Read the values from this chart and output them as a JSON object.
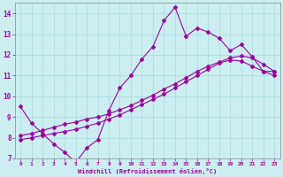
{
  "xlabel": "Windchill (Refroidissement éolien,°C)",
  "xlim": [
    -0.5,
    23.5
  ],
  "ylim": [
    7,
    14.5
  ],
  "xticks": [
    0,
    1,
    2,
    3,
    4,
    5,
    6,
    7,
    8,
    9,
    10,
    11,
    12,
    13,
    14,
    15,
    16,
    17,
    18,
    19,
    20,
    21,
    22,
    23
  ],
  "yticks": [
    7,
    8,
    9,
    10,
    11,
    12,
    13,
    14
  ],
  "bg_color": "#cceef0",
  "line_color": "#990099",
  "grid_color": "#aadddd",
  "line1_x": [
    0,
    1,
    2,
    3,
    4,
    5,
    6,
    7,
    8,
    9,
    10,
    11,
    12,
    13,
    14,
    15,
    16,
    17,
    18,
    19,
    20,
    21,
    22,
    23
  ],
  "line1_y": [
    9.5,
    8.7,
    8.2,
    7.7,
    7.3,
    6.8,
    7.5,
    7.9,
    9.3,
    10.4,
    11.0,
    11.8,
    12.4,
    13.65,
    14.3,
    12.9,
    13.3,
    13.1,
    12.8,
    12.2,
    12.5,
    11.9,
    11.2,
    11.2
  ],
  "line2_x": [
    0,
    1,
    2,
    3,
    4,
    5,
    6,
    7,
    8,
    9,
    10,
    11,
    12,
    13,
    14,
    15,
    16,
    17,
    18,
    19,
    20,
    21,
    22,
    23
  ],
  "line2_y": [
    8.1,
    8.2,
    8.35,
    8.5,
    8.65,
    8.75,
    8.9,
    9.0,
    9.15,
    9.35,
    9.55,
    9.8,
    10.05,
    10.35,
    10.6,
    10.9,
    11.2,
    11.45,
    11.65,
    11.85,
    11.95,
    11.85,
    11.55,
    11.2
  ],
  "line3_x": [
    0,
    1,
    2,
    3,
    4,
    5,
    6,
    7,
    8,
    9,
    10,
    11,
    12,
    13,
    14,
    15,
    16,
    17,
    18,
    19,
    20,
    21,
    22,
    23
  ],
  "line3_y": [
    7.9,
    8.0,
    8.1,
    8.2,
    8.3,
    8.4,
    8.55,
    8.7,
    8.9,
    9.1,
    9.35,
    9.6,
    9.85,
    10.1,
    10.4,
    10.7,
    11.0,
    11.3,
    11.6,
    11.75,
    11.7,
    11.45,
    11.2,
    11.0
  ]
}
